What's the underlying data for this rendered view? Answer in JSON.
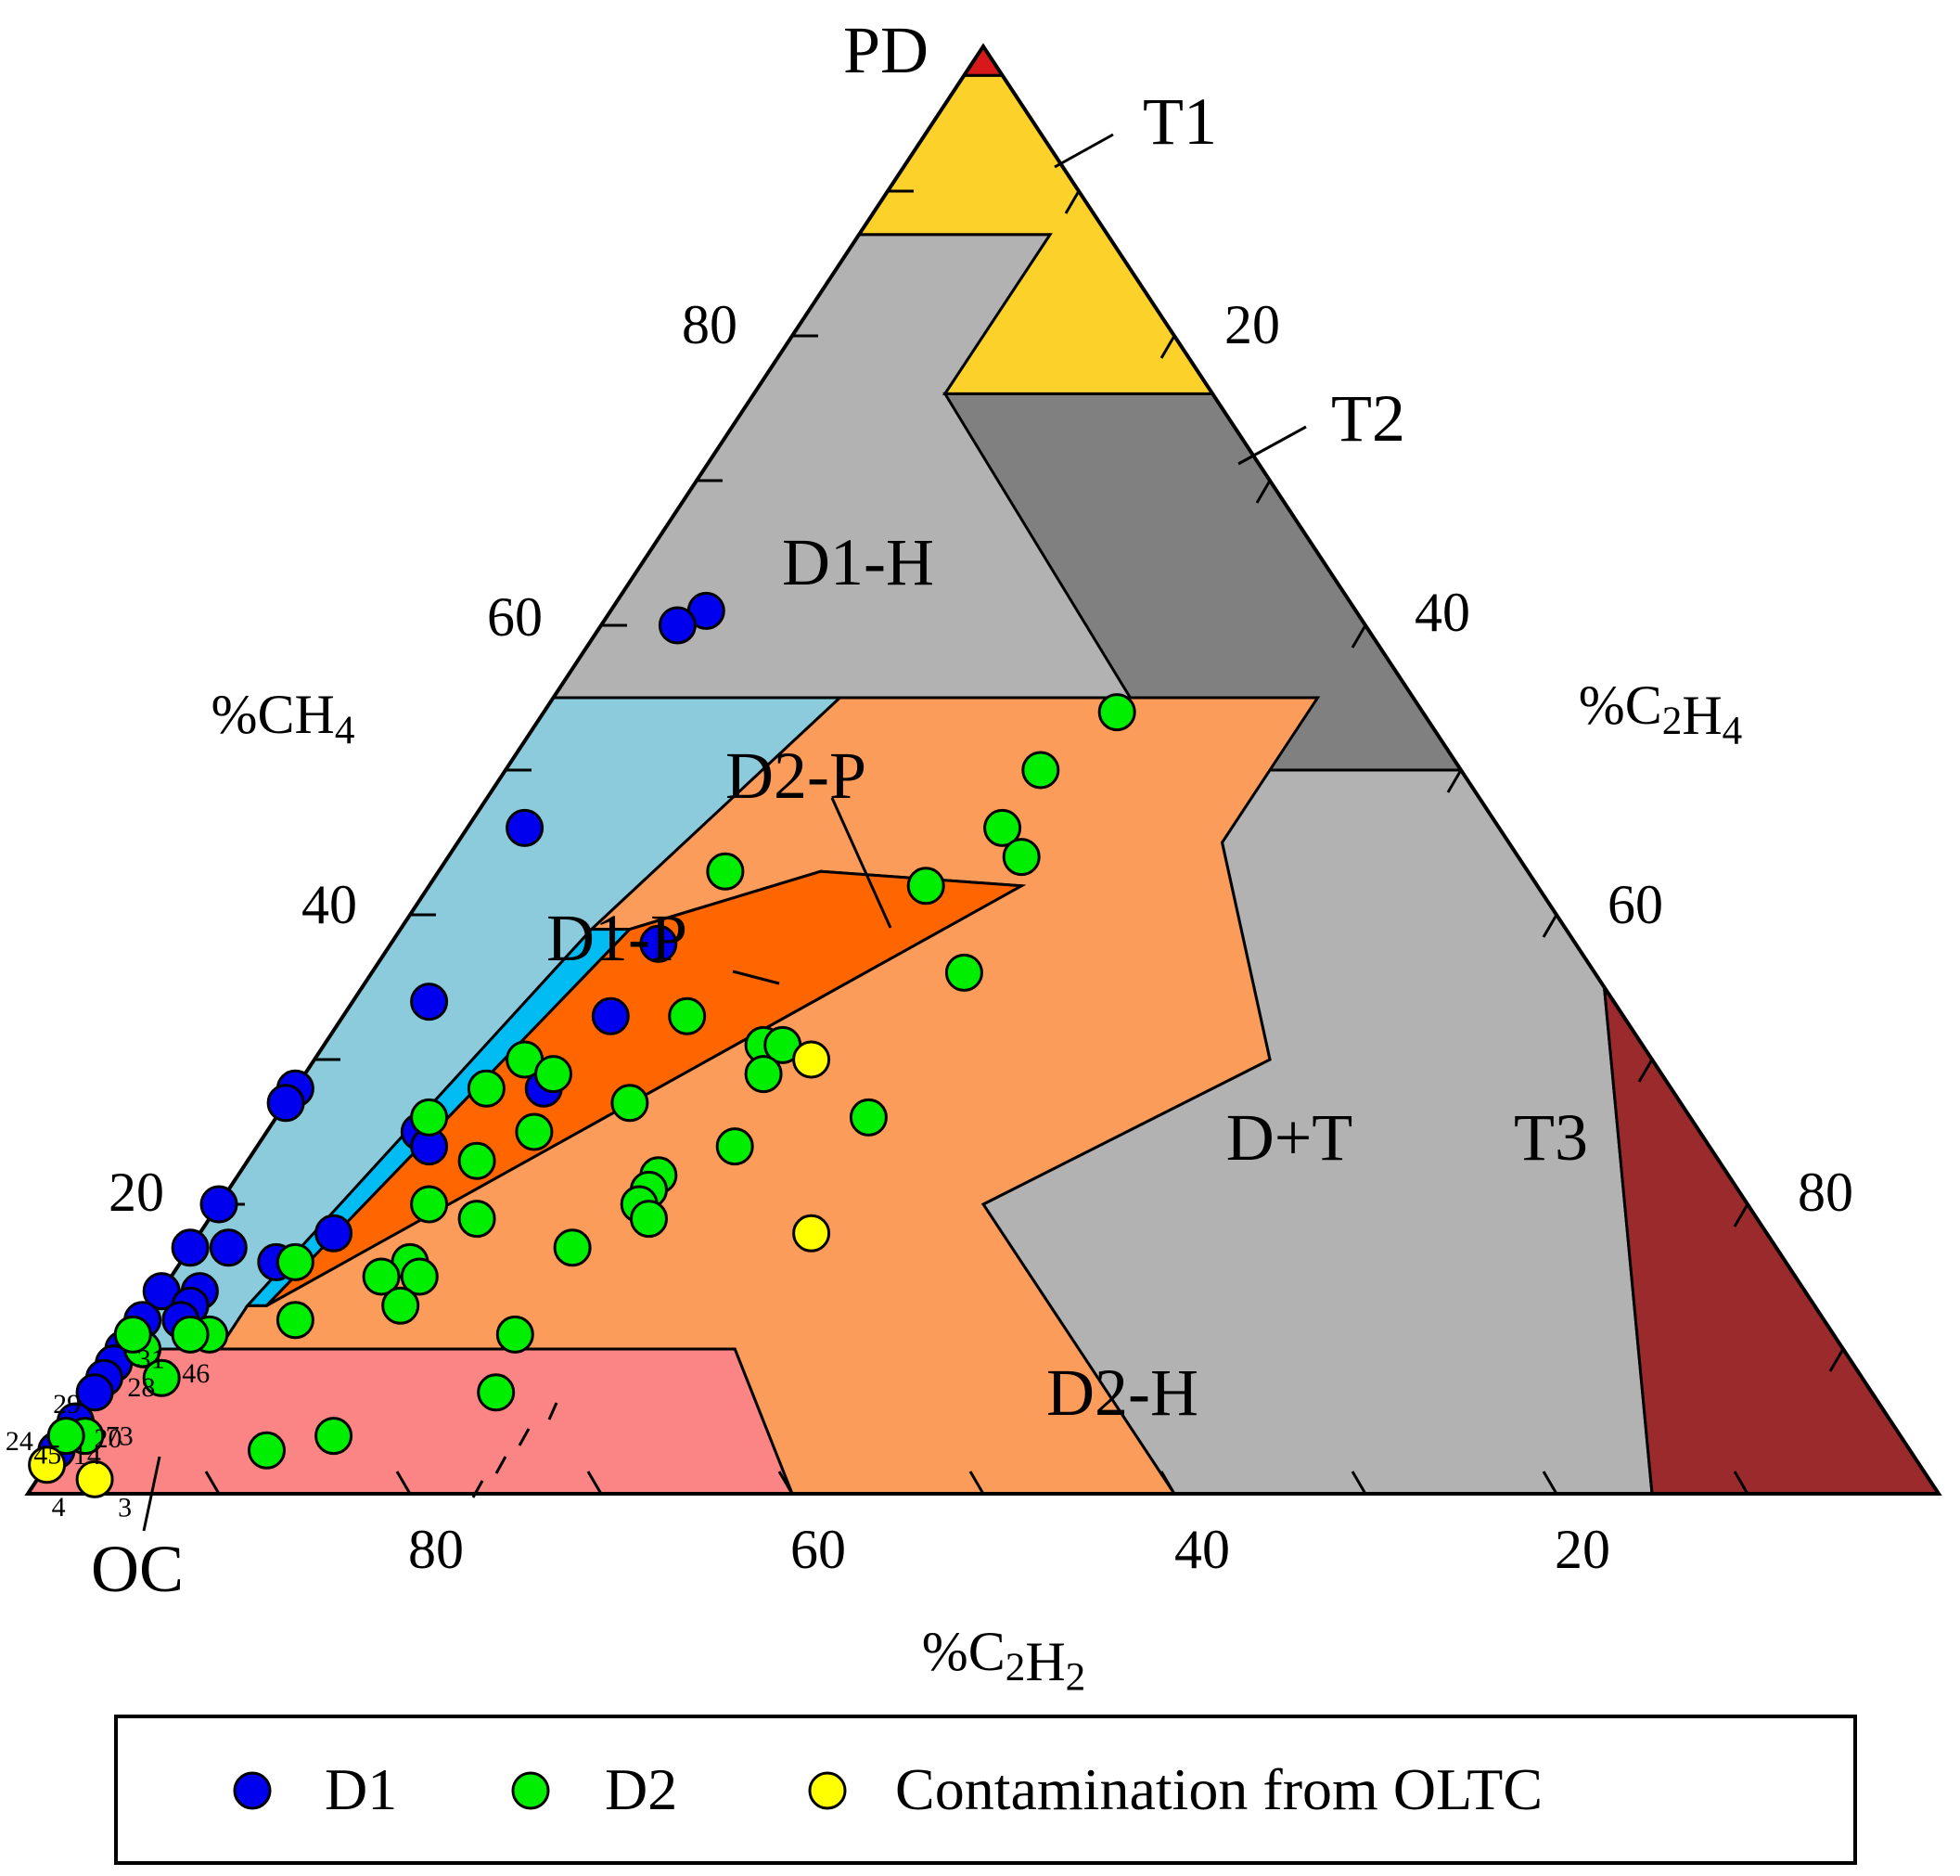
{
  "chart_data": {
    "type": "scatter",
    "subtype": "ternary-duval-triangle",
    "corner_labels": {
      "top": "PD",
      "bottom_left": "OC"
    },
    "axes": {
      "ch4": {
        "label": "%CH4",
        "ticks": [
          "20",
          "40",
          "60",
          "80"
        ]
      },
      "c2h4": {
        "label": "%C2H4",
        "ticks": [
          "20",
          "40",
          "60",
          "80"
        ]
      },
      "c2h2": {
        "label": "%C2H2",
        "ticks": [
          "80",
          "60",
          "40",
          "20"
        ]
      }
    },
    "zones": [
      {
        "id": "pd",
        "label": "",
        "color": "#d7191c"
      },
      {
        "id": "t1",
        "label": "T1",
        "color": "#fcd12a"
      },
      {
        "id": "t2",
        "label": "T2",
        "color": "#808080"
      },
      {
        "id": "dt",
        "label": "D+T",
        "color": "#b2b2b2"
      },
      {
        "id": "t3",
        "label": "T3",
        "color": "#9b2a2d"
      },
      {
        "id": "d1h",
        "label": "D1-H",
        "color": "#8ccbdb"
      },
      {
        "id": "oc",
        "label": "",
        "color": "#fb8585"
      },
      {
        "id": "d2h",
        "label": "D2-H",
        "color": "#fc9c5b"
      },
      {
        "id": "d1p",
        "label": "D1-P",
        "color": "#00bcf2"
      },
      {
        "id": "d2p",
        "label": "D2-P",
        "color": "#ff6600"
      }
    ],
    "series": [
      {
        "name": "D1",
        "color": "#0000ee",
        "points": [
          {
            "ch4": 61,
            "c2h4": 5,
            "c2h2": 34
          },
          {
            "ch4": 60,
            "c2h4": 4,
            "c2h2": 36
          },
          {
            "ch4": 46,
            "c2h4": 3,
            "c2h2": 51
          },
          {
            "ch4": 38,
            "c2h4": 14,
            "c2h2": 48
          },
          {
            "ch4": 34,
            "c2h4": 4,
            "c2h2": 62
          },
          {
            "ch4": 33,
            "c2h4": 14,
            "c2h2": 53
          },
          {
            "ch4": 28,
            "c2h4": 13,
            "c2h2": 59
          },
          {
            "ch4": 28,
            "c2h4": 0,
            "c2h2": 72
          },
          {
            "ch4": 27,
            "c2h4": 0,
            "c2h2": 73
          },
          {
            "ch4": 25,
            "c2h4": 8,
            "c2h2": 67
          },
          {
            "ch4": 24,
            "c2h4": 9,
            "c2h2": 67
          },
          {
            "ch4": 20,
            "c2h4": 0,
            "c2h2": 80
          },
          {
            "ch4": 18,
            "c2h4": 7,
            "c2h2": 75
          },
          {
            "ch4": 17,
            "c2h4": 0,
            "c2h2": 83
          },
          {
            "ch4": 17,
            "c2h4": 2,
            "c2h2": 81
          },
          {
            "ch4": 16,
            "c2h4": 5,
            "c2h2": 79
          },
          {
            "ch4": 14,
            "c2h4": 0,
            "c2h2": 86
          },
          {
            "ch4": 14,
            "c2h4": 2,
            "c2h2": 84
          },
          {
            "ch4": 13,
            "c2h4": 2,
            "c2h2": 85
          },
          {
            "ch4": 12,
            "c2h4": 2,
            "c2h2": 86
          },
          {
            "ch4": 12,
            "c2h4": 0,
            "c2h2": 88
          },
          {
            "ch4": 11,
            "c2h4": 0,
            "c2h2": 89
          },
          {
            "ch4": 10,
            "c2h4": 0,
            "c2h2": 90
          },
          {
            "ch4": 9,
            "c2h4": 0,
            "c2h2": 91,
            "label": "31"
          },
          {
            "ch4": 8,
            "c2h4": 0,
            "c2h2": 92,
            "label": "28"
          },
          {
            "ch4": 7,
            "c2h4": 0,
            "c2h2": 93,
            "label": "29"
          },
          {
            "ch4": 5,
            "c2h4": 0,
            "c2h2": 95,
            "label": "20"
          },
          {
            "ch4": 3,
            "c2h4": 0,
            "c2h2": 97,
            "label": "14"
          },
          {
            "ch4": 3,
            "c2h4": 0,
            "c2h2": 97,
            "label": "24"
          }
        ]
      },
      {
        "name": "D2",
        "color": "#00ee00",
        "points": [
          {
            "ch4": 54,
            "c2h4": 30,
            "c2h2": 16
          },
          {
            "ch4": 50,
            "c2h4": 28,
            "c2h2": 22
          },
          {
            "ch4": 46,
            "c2h4": 28,
            "c2h2": 26
          },
          {
            "ch4": 44,
            "c2h4": 30,
            "c2h2": 26
          },
          {
            "ch4": 43,
            "c2h4": 15,
            "c2h2": 42
          },
          {
            "ch4": 42,
            "c2h4": 26,
            "c2h2": 32
          },
          {
            "ch4": 36,
            "c2h4": 31,
            "c2h2": 33
          },
          {
            "ch4": 33,
            "c2h4": 18,
            "c2h2": 49
          },
          {
            "ch4": 31,
            "c2h4": 23,
            "c2h2": 46
          },
          {
            "ch4": 31,
            "c2h4": 24,
            "c2h2": 45
          },
          {
            "ch4": 30,
            "c2h4": 11,
            "c2h2": 59
          },
          {
            "ch4": 29,
            "c2h4": 13,
            "c2h2": 58
          },
          {
            "ch4": 29,
            "c2h4": 24,
            "c2h2": 47
          },
          {
            "ch4": 28,
            "c2h4": 10,
            "c2h2": 62
          },
          {
            "ch4": 27,
            "c2h4": 18,
            "c2h2": 55
          },
          {
            "ch4": 26,
            "c2h4": 31,
            "c2h2": 43
          },
          {
            "ch4": 26,
            "c2h4": 8,
            "c2h2": 66
          },
          {
            "ch4": 25,
            "c2h4": 14,
            "c2h2": 61
          },
          {
            "ch4": 24,
            "c2h4": 25,
            "c2h2": 51
          },
          {
            "ch4": 23,
            "c2h4": 12,
            "c2h2": 65
          },
          {
            "ch4": 22,
            "c2h4": 22,
            "c2h2": 56
          },
          {
            "ch4": 21,
            "c2h4": 22,
            "c2h2": 57
          },
          {
            "ch4": 20,
            "c2h4": 11,
            "c2h2": 69
          },
          {
            "ch4": 20,
            "c2h4": 22,
            "c2h2": 58
          },
          {
            "ch4": 19,
            "c2h4": 14,
            "c2h2": 67
          },
          {
            "ch4": 19,
            "c2h4": 23,
            "c2h2": 58
          },
          {
            "ch4": 17,
            "c2h4": 20,
            "c2h2": 63
          },
          {
            "ch4": 16,
            "c2h4": 6,
            "c2h2": 78
          },
          {
            "ch4": 16,
            "c2h4": 12,
            "c2h2": 72
          },
          {
            "ch4": 15,
            "c2h4": 13,
            "c2h2": 72
          },
          {
            "ch4": 15,
            "c2h4": 11,
            "c2h2": 74
          },
          {
            "ch4": 13,
            "c2h4": 13,
            "c2h2": 74
          },
          {
            "ch4": 12,
            "c2h4": 8,
            "c2h2": 80
          },
          {
            "ch4": 11,
            "c2h4": 4,
            "c2h2": 85
          },
          {
            "ch4": 11,
            "c2h4": 3,
            "c2h2": 86
          },
          {
            "ch4": 11,
            "c2h4": 20,
            "c2h2": 69
          },
          {
            "ch4": 10,
            "c2h4": 1,
            "c2h2": 89
          },
          {
            "ch4": 11,
            "c2h4": 0,
            "c2h2": 89
          },
          {
            "ch4": 7,
            "c2h4": 21,
            "c2h2": 72
          },
          {
            "ch4": 8,
            "c2h4": 3,
            "c2h2": 89,
            "label": "46"
          },
          {
            "ch4": 4,
            "c2h4": 14,
            "c2h2": 82
          },
          {
            "ch4": 4,
            "c2h4": 1,
            "c2h2": 95,
            "label": "73"
          },
          {
            "ch4": 4,
            "c2h4": 0,
            "c2h2": 96,
            "label": "45"
          },
          {
            "ch4": 3,
            "c2h4": 11,
            "c2h2": 86
          }
        ]
      },
      {
        "name": "Contamination from OLTC",
        "color": "#ffff00",
        "points": [
          {
            "ch4": 30,
            "c2h4": 26,
            "c2h2": 44
          },
          {
            "ch4": 18,
            "c2h4": 32,
            "c2h2": 50
          },
          {
            "ch4": 2,
            "c2h4": 0,
            "c2h2": 98,
            "label": "4"
          },
          {
            "ch4": 1,
            "c2h4": 3,
            "c2h2": 96,
            "label": "3"
          }
        ]
      }
    ],
    "legend": {
      "placement": "bottom",
      "entries": [
        "D1",
        "D2",
        "Contamination from OLTC"
      ]
    }
  }
}
